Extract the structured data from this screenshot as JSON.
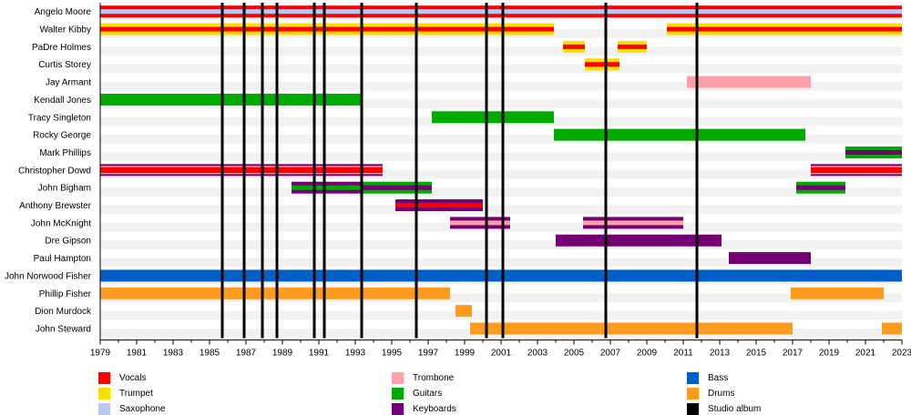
{
  "chart_data": {
    "type": "timeline",
    "title": "",
    "xlabel": "",
    "ylabel": "",
    "xlim": [
      1979,
      2023
    ],
    "x_ticks": [
      1979,
      1981,
      1983,
      1985,
      1987,
      1989,
      1991,
      1993,
      1995,
      1997,
      1999,
      2001,
      2003,
      2005,
      2007,
      2009,
      2011,
      2013,
      2015,
      2017,
      2019,
      2021,
      2023
    ],
    "grid": "alternating row shading",
    "legend_position": "bottom",
    "colors": {
      "vocals": "#ff0000",
      "trumpet": "#ffdd00",
      "saxophone": "#b8c8f0",
      "trombone": "#ffa0a8",
      "guitars": "#00aa00",
      "keyboards": "#750075",
      "bass": "#0060c8",
      "drums": "#ff9c20",
      "studio_album": "#000000"
    },
    "legend": [
      {
        "key": "vocals",
        "label": "Vocals"
      },
      {
        "key": "trumpet",
        "label": "Trumpet"
      },
      {
        "key": "saxophone",
        "label": "Saxophone"
      },
      {
        "key": "trombone",
        "label": "Trombone"
      },
      {
        "key": "guitars",
        "label": "Guitars"
      },
      {
        "key": "keyboards",
        "label": "Keyboards"
      },
      {
        "key": "bass",
        "label": "Bass"
      },
      {
        "key": "drums",
        "label": "Drums"
      },
      {
        "key": "studio_album",
        "label": "Studio album"
      }
    ],
    "studio_albums": [
      1985.7,
      1986.9,
      1987.9,
      1988.7,
      1990.75,
      1991.3,
      1993.35,
      1996.35,
      2000.2,
      2001.1,
      2006.75,
      2011.75
    ],
    "members": [
      {
        "name": "Angelo Moore",
        "spans": [
          {
            "start": 1979,
            "end": 2023,
            "outer": "vocals",
            "inner": [
              "saxophone"
            ]
          }
        ]
      },
      {
        "name": "Walter Kibby",
        "spans": [
          {
            "start": 1979,
            "end": 2003.9,
            "outer": "trumpet",
            "inner": [
              "vocals"
            ]
          },
          {
            "start": 2010.1,
            "end": 2023,
            "outer": "trumpet",
            "inner": [
              "vocals"
            ]
          }
        ]
      },
      {
        "name": "PaDre Holmes",
        "spans": [
          {
            "start": 2004.4,
            "end": 2005.6,
            "outer": "trumpet",
            "inner": [
              "vocals"
            ]
          },
          {
            "start": 2007.4,
            "end": 2009.0,
            "outer": "trumpet",
            "inner": [
              "vocals"
            ]
          }
        ]
      },
      {
        "name": "Curtis Storey",
        "spans": [
          {
            "start": 2005.6,
            "end": 2007.5,
            "outer": "trumpet",
            "inner": [
              "vocals"
            ]
          }
        ]
      },
      {
        "name": "Jay Armant",
        "spans": [
          {
            "start": 2011.2,
            "end": 2018.0,
            "outer": "trombone",
            "inner": []
          }
        ]
      },
      {
        "name": "Kendall Jones",
        "spans": [
          {
            "start": 1979,
            "end": 1993.4,
            "outer": "guitars",
            "inner": []
          }
        ]
      },
      {
        "name": "Tracy Singleton",
        "spans": [
          {
            "start": 1997.2,
            "end": 2003.9,
            "outer": "guitars",
            "inner": []
          }
        ]
      },
      {
        "name": "Rocky George",
        "spans": [
          {
            "start": 2003.9,
            "end": 2017.7,
            "outer": "guitars",
            "inner": []
          }
        ]
      },
      {
        "name": "Mark Phillips",
        "spans": [
          {
            "start": 2019.9,
            "end": 2023,
            "outer": "guitars",
            "inner": [
              "keyboards"
            ]
          }
        ]
      },
      {
        "name": "Christopher Dowd",
        "spans": [
          {
            "start": 1979,
            "end": 1994.5,
            "outer": "keyboards",
            "inner": [
              "trombone",
              "vocals"
            ]
          },
          {
            "start": 2018.0,
            "end": 2023,
            "outer": "keyboards",
            "inner": [
              "trombone",
              "vocals"
            ]
          }
        ]
      },
      {
        "name": "John Bigham",
        "spans": [
          {
            "start": 1989.5,
            "end": 1993.4,
            "outer": "keyboards",
            "inner": [
              "guitars"
            ]
          },
          {
            "start": 1993.4,
            "end": 1997.2,
            "outer": "guitars",
            "inner": [
              "keyboards"
            ]
          },
          {
            "start": 2017.2,
            "end": 2019.9,
            "outer": "guitars",
            "inner": [
              "keyboards"
            ]
          }
        ]
      },
      {
        "name": "Anthony Brewster",
        "spans": [
          {
            "start": 1995.2,
            "end": 2000.0,
            "outer": "keyboards",
            "inner": [
              "vocals"
            ]
          }
        ]
      },
      {
        "name": "John McKnight",
        "spans": [
          {
            "start": 1998.2,
            "end": 2001.5,
            "outer": "keyboards",
            "inner": [
              "trombone"
            ]
          },
          {
            "start": 2005.5,
            "end": 2011.0,
            "outer": "keyboards",
            "inner": [
              "trombone"
            ]
          }
        ]
      },
      {
        "name": "Dre Gipson",
        "spans": [
          {
            "start": 2004.0,
            "end": 2013.1,
            "outer": "keyboards",
            "inner": []
          }
        ]
      },
      {
        "name": "Paul Hampton",
        "spans": [
          {
            "start": 2013.5,
            "end": 2018.0,
            "outer": "keyboards",
            "inner": []
          }
        ]
      },
      {
        "name": "John Norwood Fisher",
        "spans": [
          {
            "start": 1979,
            "end": 2023,
            "outer": "bass",
            "inner": []
          }
        ]
      },
      {
        "name": "Phillip Fisher",
        "spans": [
          {
            "start": 1979,
            "end": 1998.2,
            "outer": "drums",
            "inner": []
          },
          {
            "start": 2016.9,
            "end": 2022.0,
            "outer": "drums",
            "inner": []
          }
        ]
      },
      {
        "name": "Dion Murdock",
        "spans": [
          {
            "start": 1998.5,
            "end": 1999.4,
            "outer": "drums",
            "inner": []
          }
        ]
      },
      {
        "name": "John Steward",
        "spans": [
          {
            "start": 1999.3,
            "end": 2017.0,
            "outer": "drums",
            "inner": []
          },
          {
            "start": 2021.9,
            "end": 2023,
            "outer": "drums",
            "inner": []
          }
        ]
      }
    ]
  }
}
